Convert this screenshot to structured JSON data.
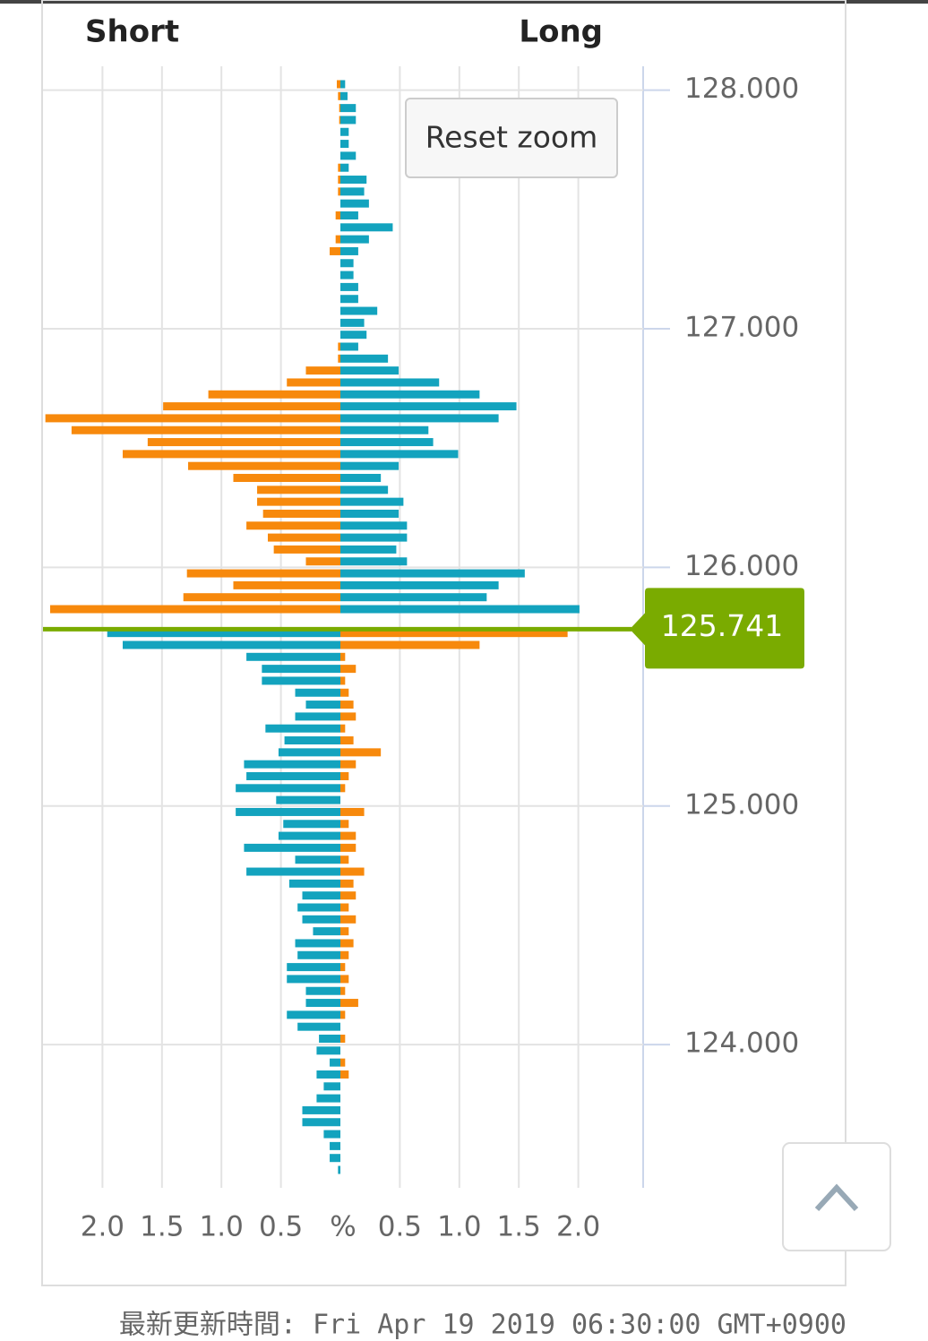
{
  "chart_data": {
    "type": "orderbook",
    "current_price": 125.741,
    "reset_button": "Reset zoom",
    "xlabel": "%",
    "xlim": [
      0,
      2.5
    ],
    "xticks_short": [
      {
        "value": 2,
        "label": "2.0"
      },
      1.5,
      {
        "value": 1,
        "label": "1.0"
      },
      0.5
    ],
    "xticks_long": [
      0.5,
      {
        "value": 1,
        "label": "1.0"
      },
      1.5,
      {
        "value": 2,
        "label": "2.0"
      }
    ],
    "ylim": [
      123.4,
      128.1
    ],
    "yticks": [
      {
        "value": 128,
        "label": "128.000"
      },
      {
        "value": 127,
        "label": "127.000"
      },
      {
        "value": 126,
        "label": "126.000"
      },
      {
        "value": 125,
        "label": "125.000"
      },
      {
        "value": 124,
        "label": "124.000"
      }
    ],
    "grid": true,
    "current_color": "#7aab00",
    "y": [
      128,
      127.95,
      127.9,
      127.85,
      127.8,
      127.75,
      127.7,
      127.65,
      127.6,
      127.55,
      127.5,
      127.45,
      127.4,
      127.35,
      127.3,
      127.25,
      127.2,
      127.15,
      127.1,
      127.05,
      127,
      126.95,
      126.9,
      126.85,
      126.8,
      126.75,
      126.7,
      126.65,
      126.6,
      126.55,
      126.5,
      126.45,
      126.4,
      126.35,
      126.3,
      126.25,
      126.2,
      126.15,
      126.1,
      126.05,
      126,
      125.95,
      125.9,
      125.85,
      125.8,
      125.7,
      125.65,
      125.6,
      125.55,
      125.5,
      125.45,
      125.4,
      125.35,
      125.3,
      125.25,
      125.2,
      125.15,
      125.1,
      125.05,
      125,
      124.95,
      124.9,
      124.85,
      124.8,
      124.75,
      124.7,
      124.65,
      124.6,
      124.55,
      124.5,
      124.45,
      124.4,
      124.35,
      124.3,
      124.25,
      124.2,
      124.15,
      124.1,
      124.05,
      124,
      123.95,
      123.9,
      123.85,
      123.8,
      123.75,
      123.7,
      123.65,
      123.6,
      123.55,
      123.5,
      123.45
    ],
    "series": [
      {
        "name": "Short",
        "side": "left",
        "color": "#f7890c",
        "color_below": "#13a3be",
        "values": [
          0.03,
          0.02,
          0.01,
          0.01,
          0,
          0,
          0,
          0.02,
          0.02,
          0.02,
          0,
          0.04,
          0,
          0.04,
          0.09,
          0,
          0,
          0,
          0,
          0,
          0,
          0,
          0.02,
          0.02,
          0.29,
          0.45,
          1.11,
          1.49,
          2.48,
          2.26,
          1.62,
          1.83,
          1.28,
          0.9,
          0.7,
          0.7,
          0.65,
          0.79,
          0.61,
          0.56,
          0.29,
          1.29,
          0.9,
          1.32,
          2.44,
          1.96,
          1.83,
          0.79,
          0.66,
          0.66,
          0.38,
          0.29,
          0.38,
          0.63,
          0.47,
          0.52,
          0.81,
          0.79,
          0.88,
          0.54,
          0.88,
          0.48,
          0.52,
          0.81,
          0.38,
          0.79,
          0.43,
          0.32,
          0.36,
          0.32,
          0.23,
          0.38,
          0.36,
          0.45,
          0.45,
          0.29,
          0.29,
          0.45,
          0.36,
          0.18,
          0.2,
          0.09,
          0.2,
          0.14,
          0.2,
          0.32,
          0.32,
          0.14,
          0.09,
          0.09,
          0.02
        ]
      },
      {
        "name": "Long",
        "side": "right",
        "color": "#13a3be",
        "color_below": "#f7890c",
        "values": [
          0.04,
          0.06,
          0.13,
          0.13,
          0.07,
          0.07,
          0.13,
          0.07,
          0.22,
          0.2,
          0.24,
          0.15,
          0.44,
          0.24,
          0.15,
          0.11,
          0.11,
          0.15,
          0.15,
          0.31,
          0.2,
          0.22,
          0.15,
          0.4,
          0.49,
          0.83,
          1.17,
          1.48,
          1.33,
          0.74,
          0.78,
          0.99,
          0.49,
          0.34,
          0.4,
          0.53,
          0.49,
          0.56,
          0.56,
          0.47,
          0.56,
          1.55,
          1.33,
          1.23,
          2.01,
          1.91,
          1.17,
          0.04,
          0.13,
          0.04,
          0.07,
          0.11,
          0.13,
          0.04,
          0.11,
          0.34,
          0.13,
          0.07,
          0.04,
          0,
          0.2,
          0.07,
          0.13,
          0.13,
          0.07,
          0.2,
          0.11,
          0.13,
          0.07,
          0.13,
          0.07,
          0.11,
          0.07,
          0.04,
          0.07,
          0.04,
          0.15,
          0.04,
          0,
          0.04,
          0,
          0.04,
          0.07,
          0,
          0,
          0,
          0,
          0,
          0,
          0,
          0
        ]
      }
    ],
    "footer": "最新更新時間: Fri Apr 19 2019 06:30:00 GMT+0900"
  }
}
